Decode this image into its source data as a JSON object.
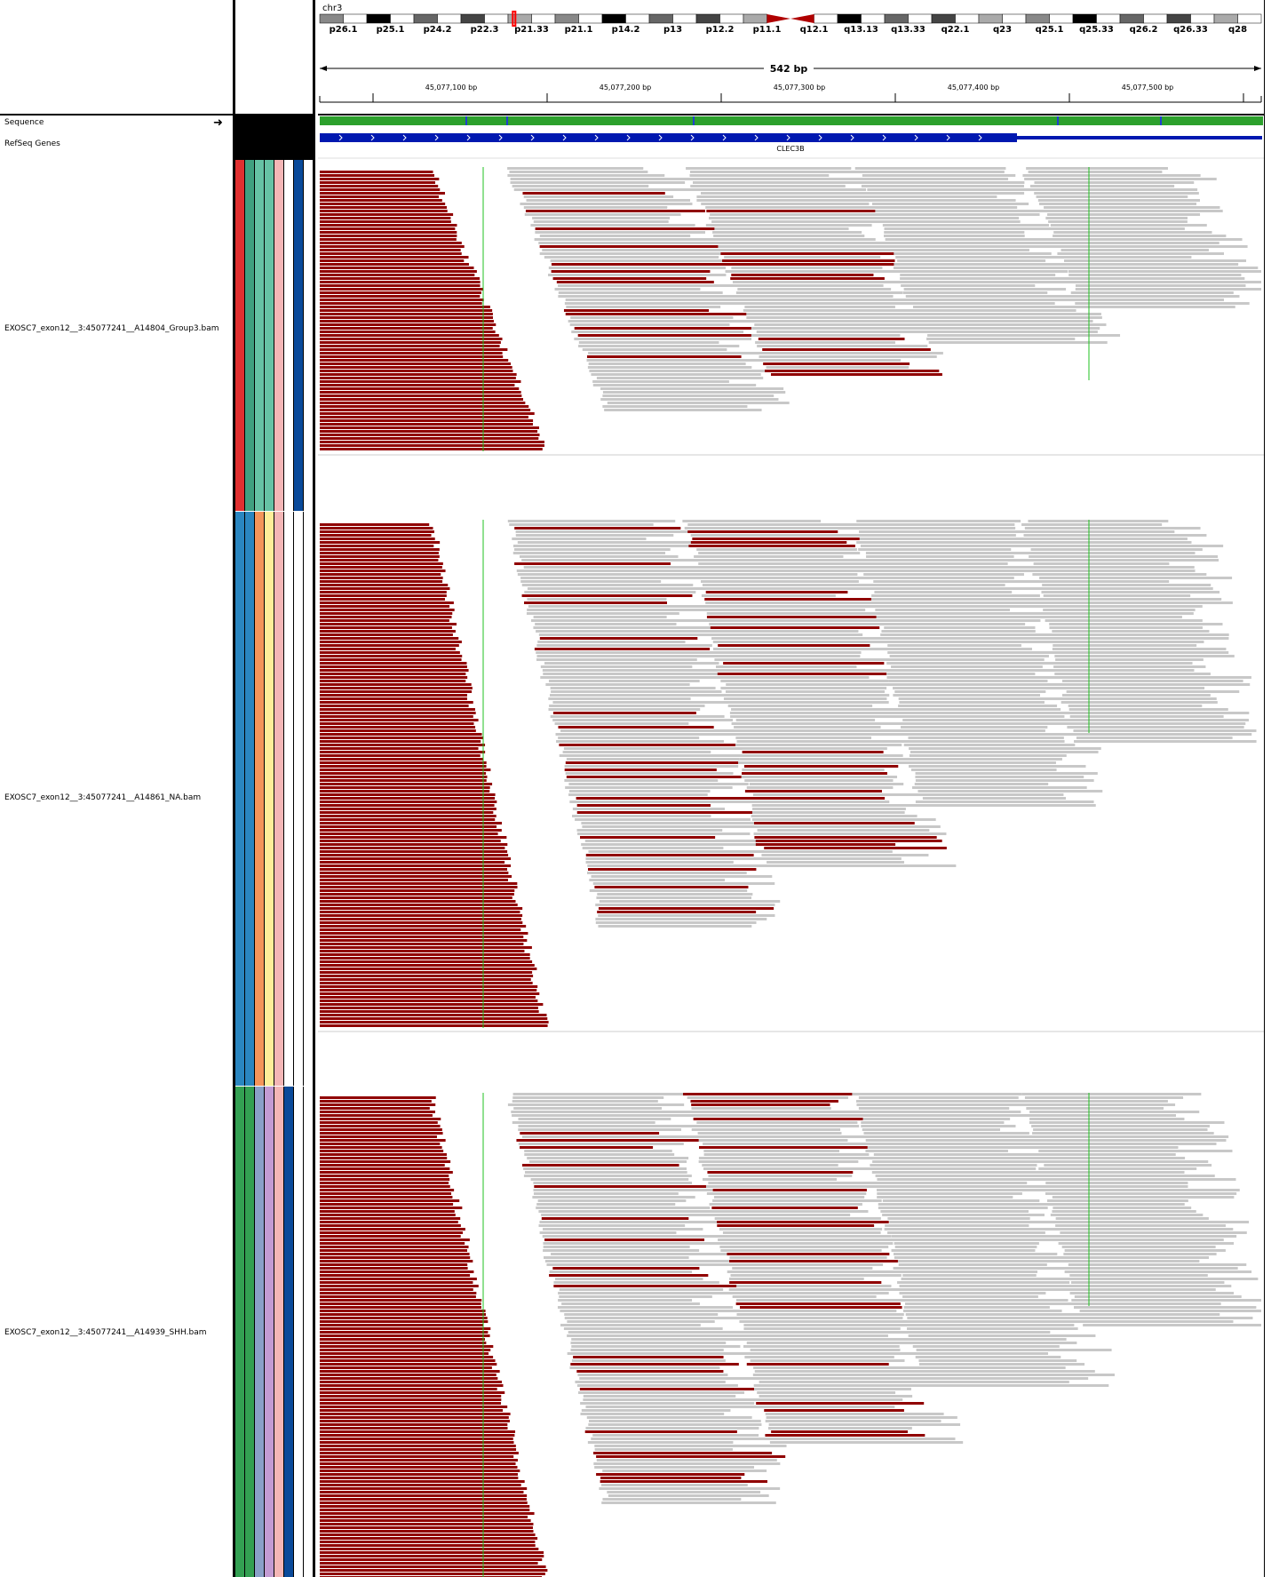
{
  "header": {
    "chromosome": "chr3",
    "span_label": "542 bp",
    "cytobands": [
      "p26.1",
      "p25.1",
      "p24.2",
      "p22.3",
      "p21.33",
      "p21.1",
      "p14.2",
      "p13",
      "p12.2",
      "p11.1",
      "q12.1",
      "q13.13",
      "q13.33",
      "q22.1",
      "q23",
      "q25.1",
      "q25.33",
      "q26.2",
      "q26.33",
      "q28"
    ],
    "ruler_ticks": [
      "45,077,100 bp",
      "45,077,200 bp",
      "45,077,300 bp",
      "45,077,400 bp",
      "45,077,500 bp"
    ]
  },
  "tracks": {
    "sequence_label": "Sequence",
    "refseq_label": "RefSeq Genes",
    "gene_name": "CLEC3B",
    "samples": [
      {
        "label": "EXOSC7_exon12__3:45077241__A14804_Group3.bam",
        "attr_colors": [
          "#e03030",
          "#40a080",
          "#66c2a5",
          "#66c2a5",
          "#f4b6b6",
          "#ffffff",
          "#0a4a9a"
        ]
      },
      {
        "label": "EXOSC7_exon12__3:45077241__A14861_NA.bam",
        "attr_colors": [
          "#2a86c0",
          "#2a86c0",
          "#f4955a",
          "#ffee99",
          "#f4b6b6",
          "#ffffff",
          "#ffffff"
        ]
      },
      {
        "label": "EXOSC7_exon12__3:45077241__A14939_SHH.bam",
        "attr_colors": [
          "#33a052",
          "#33a052",
          "#8aa0c8",
          "#c39bd3",
          "#f4b6b6",
          "#0a4a9a",
          "#ffffff"
        ]
      }
    ]
  },
  "colors": {
    "read_red": "#900000",
    "read_gray": "#c8c8c8",
    "gene_blue": "#0018b0",
    "mismatch_green": "#20c020"
  }
}
